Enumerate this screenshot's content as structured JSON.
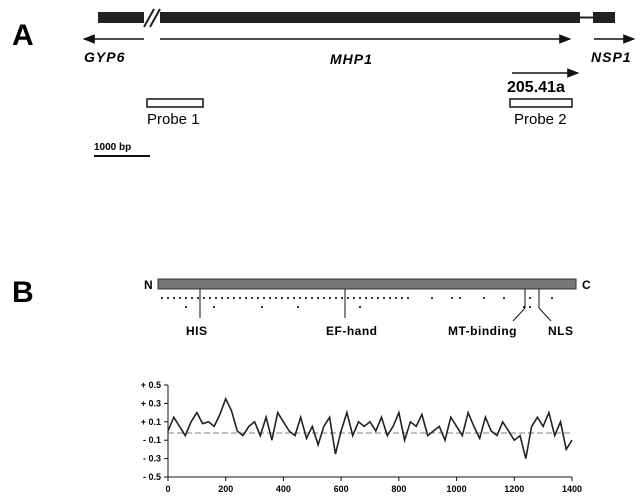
{
  "panel_a": {
    "letter": "A",
    "genes": {
      "left": "GYP6",
      "center": "MHP1",
      "right": "NSP1"
    },
    "transcript_label": "205.41a",
    "probe1": "Probe 1",
    "probe2": "Probe 2",
    "scale_bar": "1000 bp"
  },
  "panel_b": {
    "letter": "B",
    "n_terminus": "N",
    "c_terminus": "C",
    "domains": [
      "HIS",
      "EF-hand",
      "MT-binding",
      "NLS"
    ]
  },
  "chart_data": {
    "type": "line",
    "title": "",
    "xlabel": "",
    "ylabel": "",
    "xlim": [
      0,
      1400
    ],
    "ylim": [
      -0.5,
      0.5
    ],
    "x_ticks": [
      "0",
      "200",
      "400",
      "600",
      "800",
      "1000",
      "1200",
      "1400"
    ],
    "y_ticks": [
      "+ 0.5",
      "+ 0.3",
      "+ 0.1",
      "- 0.1",
      "- 0.3",
      "- 0.5"
    ],
    "x": [
      0,
      20,
      40,
      60,
      80,
      100,
      120,
      140,
      160,
      180,
      200,
      220,
      240,
      260,
      280,
      300,
      320,
      340,
      360,
      380,
      400,
      420,
      440,
      460,
      480,
      500,
      520,
      540,
      560,
      580,
      600,
      620,
      640,
      660,
      680,
      700,
      720,
      740,
      760,
      780,
      800,
      820,
      840,
      860,
      880,
      900,
      920,
      940,
      960,
      980,
      1000,
      1020,
      1040,
      1060,
      1080,
      1100,
      1120,
      1140,
      1160,
      1180,
      1200,
      1220,
      1240,
      1260,
      1280,
      1300,
      1320,
      1340,
      1360,
      1380,
      1400
    ],
    "y": [
      0.0,
      0.15,
      0.05,
      -0.05,
      0.1,
      0.2,
      0.08,
      0.1,
      0.05,
      0.18,
      0.35,
      0.22,
      0.0,
      -0.05,
      0.05,
      0.1,
      -0.05,
      0.15,
      -0.1,
      0.2,
      0.1,
      0.0,
      -0.05,
      0.15,
      -0.08,
      0.05,
      -0.15,
      0.05,
      0.15,
      -0.25,
      0.0,
      0.2,
      -0.05,
      0.1,
      0.05,
      0.1,
      0.0,
      0.15,
      -0.05,
      0.05,
      0.2,
      -0.1,
      0.1,
      0.05,
      0.18,
      -0.05,
      0.0,
      0.05,
      -0.1,
      0.15,
      0.05,
      -0.05,
      0.2,
      0.05,
      -0.08,
      0.15,
      0.0,
      -0.05,
      0.1,
      0.0,
      -0.1,
      -0.05,
      -0.3,
      0.05,
      0.15,
      0.05,
      0.2,
      -0.05,
      0.1,
      -0.2,
      -0.1
    ]
  }
}
